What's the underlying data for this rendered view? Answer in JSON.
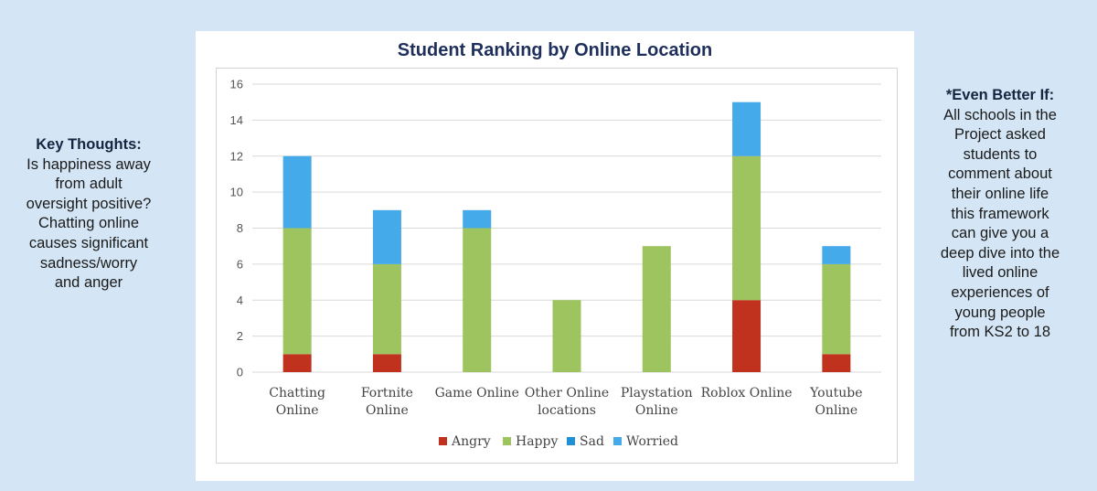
{
  "left_note": {
    "heading": "Key Thoughts:",
    "body": "Is happiness away from adult oversight positive? Chatting online causes significant sadness/worry and anger"
  },
  "right_note": {
    "heading": "*Even Better If:",
    "body": "All schools in the Project asked students to comment about their online life this framework can give you a deep dive into the lived online experiences of young people from KS2 to 18"
  },
  "chart_data": {
    "type": "bar",
    "stacked": true,
    "title": "Student Ranking by Online Location",
    "xlabel": "",
    "ylabel": "",
    "ylim": [
      0,
      16
    ],
    "yticks": [
      0,
      2,
      4,
      6,
      8,
      10,
      12,
      14,
      16
    ],
    "grid": true,
    "legend_position": "bottom",
    "categories": [
      [
        "Chatting",
        "Online"
      ],
      [
        "Fortnite",
        "Online"
      ],
      [
        "Game Online"
      ],
      [
        "Other Online",
        "locations"
      ],
      [
        "Playstation",
        "Online"
      ],
      [
        "Roblox Online"
      ],
      [
        "Youtube",
        "Online"
      ]
    ],
    "series": [
      {
        "name": "Angry",
        "color": "#c0321e",
        "values": [
          1,
          1,
          0,
          0,
          0,
          4,
          1
        ]
      },
      {
        "name": "Happy",
        "color": "#9dc45f",
        "values": [
          7,
          5,
          8,
          4,
          7,
          8,
          5
        ]
      },
      {
        "name": "Sad",
        "color": "#1f8fd6",
        "values": [
          0,
          0,
          0,
          0,
          0,
          0,
          0
        ]
      },
      {
        "name": "Worried",
        "color": "#45aaea",
        "values": [
          4,
          3,
          1,
          0,
          0,
          3,
          1
        ]
      }
    ]
  }
}
